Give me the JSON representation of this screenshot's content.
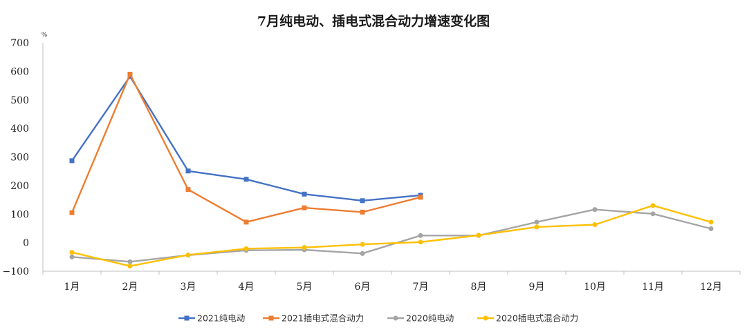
{
  "chart_data": {
    "type": "line",
    "title": "7月纯电动、插电式混合动力增速变化图",
    "ylabel": "%",
    "xlabel": "",
    "ylim": [
      -100,
      700
    ],
    "yticks": [
      -100,
      0,
      100,
      200,
      300,
      400,
      500,
      600,
      700
    ],
    "ytick_labels": [
      "−100",
      "0",
      "100",
      "200",
      "300",
      "400",
      "500",
      "600",
      "700"
    ],
    "categories": [
      "1月",
      "2月",
      "3月",
      "4月",
      "5月",
      "6月",
      "7月",
      "8月",
      "9月",
      "10月",
      "11月",
      "12月"
    ],
    "grid": false,
    "legend_position": "bottom",
    "series": [
      {
        "name": "2021纯电动",
        "color": "#4472C4",
        "marker": "square",
        "values": [
          287,
          582,
          251,
          222,
          170,
          147,
          166,
          null,
          null,
          null,
          null,
          null
        ]
      },
      {
        "name": "2021插电式混合动力",
        "color": "#ED7D31",
        "marker": "square",
        "values": [
          105,
          590,
          186,
          72,
          122,
          107,
          159,
          null,
          null,
          null,
          null,
          null
        ]
      },
      {
        "name": "2020纯电动",
        "color": "#A5A5A5",
        "marker": "circle",
        "values": [
          -50,
          -67,
          -44,
          -27,
          -25,
          -38,
          25,
          25,
          72,
          116,
          101,
          49
        ]
      },
      {
        "name": "2020插电式混合动力",
        "color": "#FFC000",
        "marker": "circle",
        "values": [
          -34,
          -82,
          -43,
          -21,
          -17,
          -6,
          2,
          26,
          55,
          63,
          130,
          72
        ]
      }
    ]
  }
}
